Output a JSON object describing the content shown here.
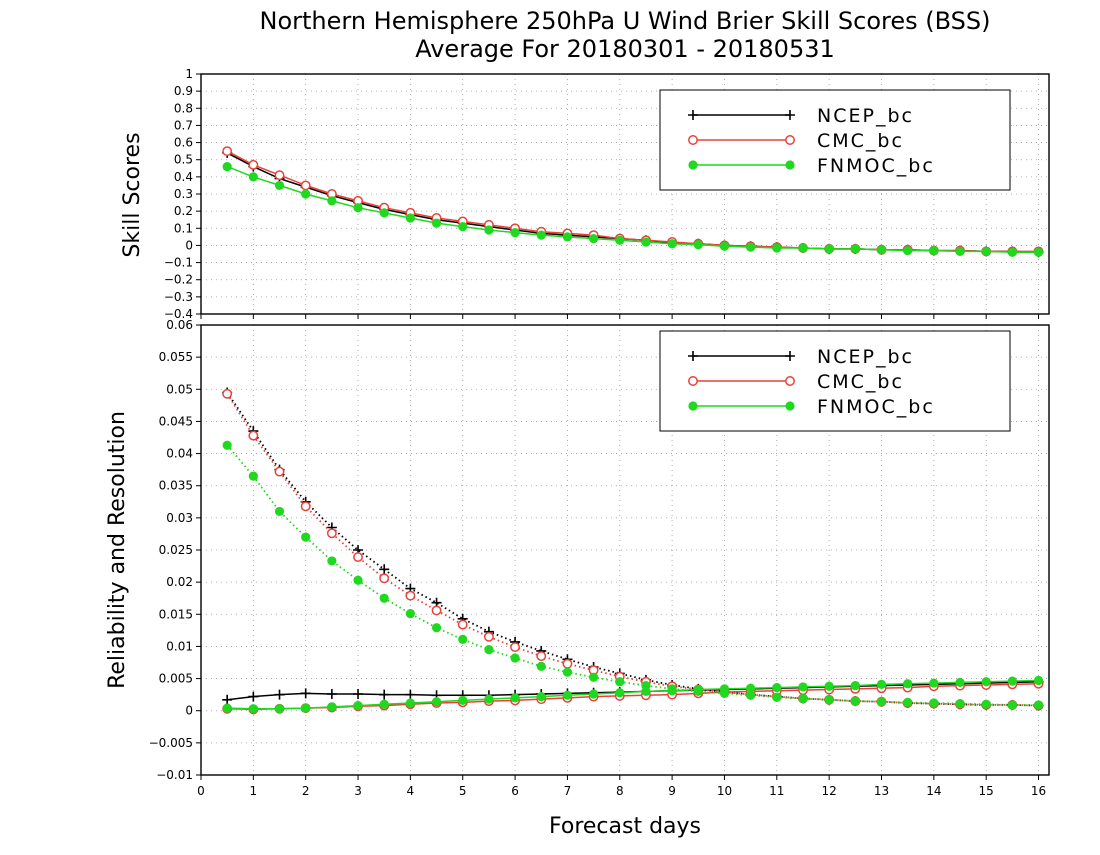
{
  "figure": {
    "title_line1": "Northern Hemisphere 250hPa U Wind Brier Skill Scores (BSS)",
    "title_line2": "Average For 20180301 - 20180531",
    "xlabel": "Forecast days"
  },
  "colors": {
    "NCEP_bc": "#000000",
    "CMC_bc": "#e8413a",
    "FNMOC_bc": "#1fd81f"
  },
  "chart_data": [
    {
      "type": "line",
      "title": "",
      "xlabel": "Forecast days",
      "ylabel": "Skill Scores",
      "xlim": [
        0,
        16.2
      ],
      "ylim": [
        -0.4,
        1
      ],
      "xticks": [
        0,
        1,
        2,
        3,
        4,
        5,
        6,
        7,
        8,
        9,
        10,
        11,
        12,
        13,
        14,
        15,
        16
      ],
      "xtick_labels": [
        "0",
        "1",
        "2",
        "3",
        "4",
        "5",
        "6",
        "7",
        "8",
        "9",
        "10",
        "11",
        "12",
        "13",
        "14",
        "15",
        "16"
      ],
      "yticks": [
        -0.4,
        -0.3,
        -0.2,
        -0.1,
        0,
        0.1,
        0.2,
        0.3,
        0.4,
        0.5,
        0.6,
        0.7,
        0.8,
        0.9,
        1
      ],
      "ytick_labels": [
        "−0.4",
        "−0.3",
        "−0.2",
        "−0.1",
        "0",
        "0.1",
        "0.2",
        "0.3",
        "0.4",
        "0.5",
        "0.6",
        "0.7",
        "0.8",
        "0.9",
        "1"
      ],
      "grid": true,
      "legend_position": "top-right",
      "x": [
        0.5,
        1,
        1.5,
        2,
        2.5,
        3,
        3.5,
        4,
        4.5,
        5,
        5.5,
        6,
        6.5,
        7,
        7.5,
        8,
        8.5,
        9,
        9.5,
        10,
        10.5,
        11,
        11.5,
        12,
        12.5,
        13,
        13.5,
        14,
        14.5,
        15,
        15.5,
        16
      ],
      "series": [
        {
          "name": "NCEP_bc",
          "marker": "plus",
          "linestyle": "solid",
          "values": [
            0.54,
            0.46,
            0.39,
            0.34,
            0.29,
            0.25,
            0.21,
            0.18,
            0.15,
            0.13,
            0.11,
            0.09,
            0.07,
            0.06,
            0.05,
            0.04,
            0.03,
            0.015,
            0.01,
            0.0,
            -0.005,
            -0.01,
            -0.015,
            -0.02,
            -0.02,
            -0.025,
            -0.025,
            -0.03,
            -0.03,
            -0.035,
            -0.035,
            -0.04
          ]
        },
        {
          "name": "CMC_bc",
          "marker": "open-circle",
          "linestyle": "solid",
          "values": [
            0.55,
            0.47,
            0.41,
            0.35,
            0.3,
            0.26,
            0.22,
            0.19,
            0.16,
            0.14,
            0.12,
            0.1,
            0.08,
            0.07,
            0.06,
            0.04,
            0.03,
            0.02,
            0.01,
            0.0,
            -0.005,
            -0.01,
            -0.015,
            -0.02,
            -0.02,
            -0.025,
            -0.025,
            -0.03,
            -0.03,
            -0.035,
            -0.035,
            -0.035
          ]
        },
        {
          "name": "FNMOC_bc",
          "marker": "filled-circle",
          "linestyle": "solid",
          "values": [
            0.46,
            0.4,
            0.35,
            0.3,
            0.26,
            0.22,
            0.19,
            0.16,
            0.13,
            0.11,
            0.09,
            0.075,
            0.06,
            0.05,
            0.04,
            0.03,
            0.02,
            0.01,
            0.005,
            -0.005,
            -0.01,
            -0.015,
            -0.015,
            -0.02,
            -0.02,
            -0.025,
            -0.03,
            -0.03,
            -0.035,
            -0.035,
            -0.04,
            -0.04
          ]
        }
      ]
    },
    {
      "type": "line",
      "title": "",
      "xlabel": "Forecast days",
      "ylabel": "Reliability and Resolution",
      "xlim": [
        0,
        16.2
      ],
      "ylim": [
        -0.01,
        0.06
      ],
      "xticks": [
        0,
        1,
        2,
        3,
        4,
        5,
        6,
        7,
        8,
        9,
        10,
        11,
        12,
        13,
        14,
        15,
        16
      ],
      "xtick_labels": [
        "0",
        "1",
        "2",
        "3",
        "4",
        "5",
        "6",
        "7",
        "8",
        "9",
        "10",
        "11",
        "12",
        "13",
        "14",
        "15",
        "16"
      ],
      "yticks": [
        -0.01,
        -0.005,
        0,
        0.005,
        0.01,
        0.015,
        0.02,
        0.025,
        0.03,
        0.035,
        0.04,
        0.045,
        0.05,
        0.055,
        0.06
      ],
      "ytick_labels": [
        "−0.01",
        "−0.005",
        "0",
        "0.005",
        "0.01",
        "0.015",
        "0.02",
        "0.025",
        "0.03",
        "0.035",
        "0.04",
        "0.045",
        "0.05",
        "0.055",
        "0.06"
      ],
      "grid": true,
      "legend_position": "top-right",
      "x": [
        0.5,
        1,
        1.5,
        2,
        2.5,
        3,
        3.5,
        4,
        4.5,
        5,
        5.5,
        6,
        6.5,
        7,
        7.5,
        8,
        8.5,
        9,
        9.5,
        10,
        10.5,
        11,
        11.5,
        12,
        12.5,
        13,
        13.5,
        14,
        14.5,
        15,
        15.5,
        16
      ],
      "series": [
        {
          "name": "NCEP_bc",
          "role": "resolution",
          "marker": "plus",
          "linestyle": "dotted",
          "values": [
            0.0495,
            0.0435,
            0.0375,
            0.0325,
            0.0285,
            0.025,
            0.022,
            0.019,
            0.0168,
            0.0143,
            0.0123,
            0.0107,
            0.0093,
            0.008,
            0.0068,
            0.0058,
            0.0048,
            0.004,
            0.0034,
            0.0029,
            0.0025,
            0.0022,
            0.0019,
            0.0017,
            0.0015,
            0.0014,
            0.0012,
            0.0011,
            0.001,
            0.0009,
            0.0009,
            0.0008
          ]
        },
        {
          "name": "NCEP_bc",
          "role": "reliability",
          "marker": "plus",
          "linestyle": "solid",
          "values": [
            0.0017,
            0.0022,
            0.0025,
            0.0027,
            0.0026,
            0.0026,
            0.0025,
            0.0025,
            0.0024,
            0.0024,
            0.0024,
            0.0025,
            0.0026,
            0.0027,
            0.0028,
            0.0029,
            0.003,
            0.0031,
            0.0032,
            0.0033,
            0.0034,
            0.0035,
            0.0036,
            0.0037,
            0.0038,
            0.0039,
            0.004,
            0.0041,
            0.0042,
            0.0043,
            0.0044,
            0.0045
          ]
        },
        {
          "name": "CMC_bc",
          "role": "resolution",
          "marker": "open-circle",
          "linestyle": "dotted",
          "values": [
            0.0493,
            0.0428,
            0.0372,
            0.0318,
            0.0276,
            0.0239,
            0.0206,
            0.0179,
            0.0156,
            0.0134,
            0.0115,
            0.0099,
            0.0085,
            0.0073,
            0.0063,
            0.0053,
            0.0045,
            0.0038,
            0.0033,
            0.0029,
            0.0025,
            0.0022,
            0.0019,
            0.0017,
            0.0015,
            0.0014,
            0.0012,
            0.0011,
            0.001,
            0.0009,
            0.0009,
            0.0008
          ]
        },
        {
          "name": "CMC_bc",
          "role": "reliability",
          "marker": "open-circle",
          "linestyle": "solid",
          "values": [
            0.0003,
            0.0002,
            0.0003,
            0.0004,
            0.0005,
            0.0007,
            0.0008,
            0.001,
            0.0012,
            0.0013,
            0.0015,
            0.0016,
            0.0018,
            0.002,
            0.0022,
            0.0023,
            0.0024,
            0.0025,
            0.0027,
            0.0029,
            0.003,
            0.0031,
            0.0032,
            0.0033,
            0.0034,
            0.0035,
            0.0036,
            0.0038,
            0.0039,
            0.004,
            0.0041,
            0.0042
          ]
        },
        {
          "name": "FNMOC_bc",
          "role": "resolution",
          "marker": "filled-circle",
          "linestyle": "dotted",
          "values": [
            0.0413,
            0.0365,
            0.031,
            0.027,
            0.0233,
            0.0203,
            0.0175,
            0.0151,
            0.0129,
            0.0111,
            0.0095,
            0.0082,
            0.0069,
            0.006,
            0.0052,
            0.0045,
            0.0039,
            0.0034,
            0.003,
            0.0027,
            0.0024,
            0.0021,
            0.0019,
            0.0017,
            0.0015,
            0.0014,
            0.0013,
            0.0012,
            0.0011,
            0.001,
            0.0009,
            0.0009
          ]
        },
        {
          "name": "FNMOC_bc",
          "role": "reliability",
          "marker": "filled-circle",
          "linestyle": "solid",
          "values": [
            0.0004,
            0.0003,
            0.0003,
            0.0004,
            0.0006,
            0.0008,
            0.001,
            0.0012,
            0.0014,
            0.0016,
            0.0018,
            0.002,
            0.0022,
            0.0024,
            0.0026,
            0.0028,
            0.003,
            0.0031,
            0.0033,
            0.0034,
            0.0035,
            0.0036,
            0.0037,
            0.0038,
            0.0039,
            0.0041,
            0.0042,
            0.0043,
            0.0044,
            0.0045,
            0.0046,
            0.0047
          ]
        }
      ]
    }
  ]
}
